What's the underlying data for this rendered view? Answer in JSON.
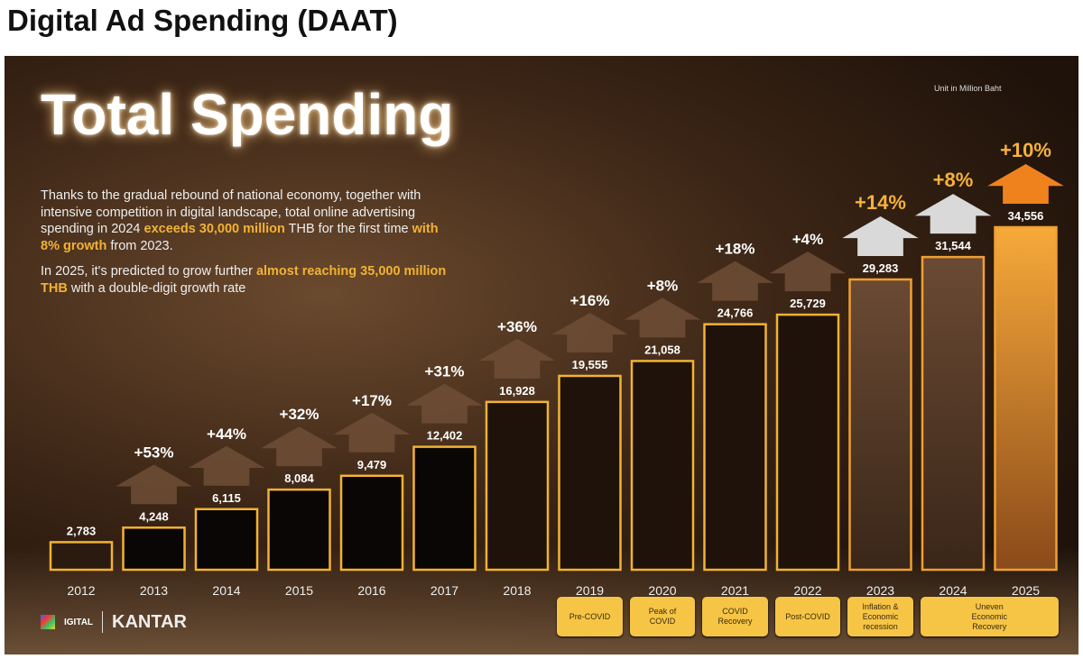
{
  "title": "Digital Ad Spending (DAAT)",
  "headline": "Total Spending",
  "description": {
    "p1": [
      "Thanks to the gradual rebound of national economy, together with intensive competition in digital landscape, total online advertising spending in 2024 ",
      "exceeds 30,000 million",
      " THB for the first time ",
      "with 8% growth",
      " from 2023."
    ],
    "p2": [
      "In 2025, it's predicted to grow further ",
      "almost reaching 35,000 million THB",
      " with a double-digit growth rate"
    ]
  },
  "unit": "Unit in Million Baht",
  "logos": {
    "digital": "IGITAL",
    "kantar": "KANTAR"
  },
  "colors": {
    "bar_border": "#f2b233",
    "highlight": "#f2b233",
    "arrow_brown": "#6e4e36",
    "arrow_gray": "#d9d9d9",
    "arrow_orange": "#f0821e",
    "badge": "#f6c545"
  },
  "chart_data": {
    "type": "bar",
    "categories": [
      "2012",
      "2013",
      "2014",
      "2015",
      "2016",
      "2017",
      "2018",
      "2019",
      "2020",
      "2021",
      "2022",
      "2023",
      "2024",
      "2025"
    ],
    "values": [
      2783,
      4248,
      6115,
      8084,
      9479,
      12402,
      16928,
      19555,
      21058,
      24766,
      25729,
      29283,
      31544,
      34556
    ],
    "value_labels": [
      "2,783",
      "4,248",
      "6,115",
      "8,084",
      "9,479",
      "12,402",
      "16,928",
      "19,555",
      "21,058",
      "24,766",
      "25,729",
      "29,283",
      "31,544",
      "34,556"
    ],
    "growth": [
      "",
      "+53%",
      "+44%",
      "+32%",
      "+17%",
      "+31%",
      "+36%",
      "+16%",
      "+8%",
      "+18%",
      "+4%",
      "+14%",
      "+8%",
      "+10%"
    ],
    "periods": [
      {
        "label": "Pre-COVID",
        "from": "2019",
        "to": "2019"
      },
      {
        "label": "Peak of COVID",
        "from": "2020",
        "to": "2020"
      },
      {
        "label": "COVID Recovery",
        "from": "2021",
        "to": "2021"
      },
      {
        "label": "Post-COVID",
        "from": "2022",
        "to": "2022"
      },
      {
        "label": "Inflation & Economic recession",
        "from": "2023",
        "to": "2023"
      },
      {
        "label": "Uneven Economic Recovery",
        "from": "2024",
        "to": "2025"
      }
    ],
    "ylim": [
      0,
      34556
    ],
    "grid": false
  }
}
